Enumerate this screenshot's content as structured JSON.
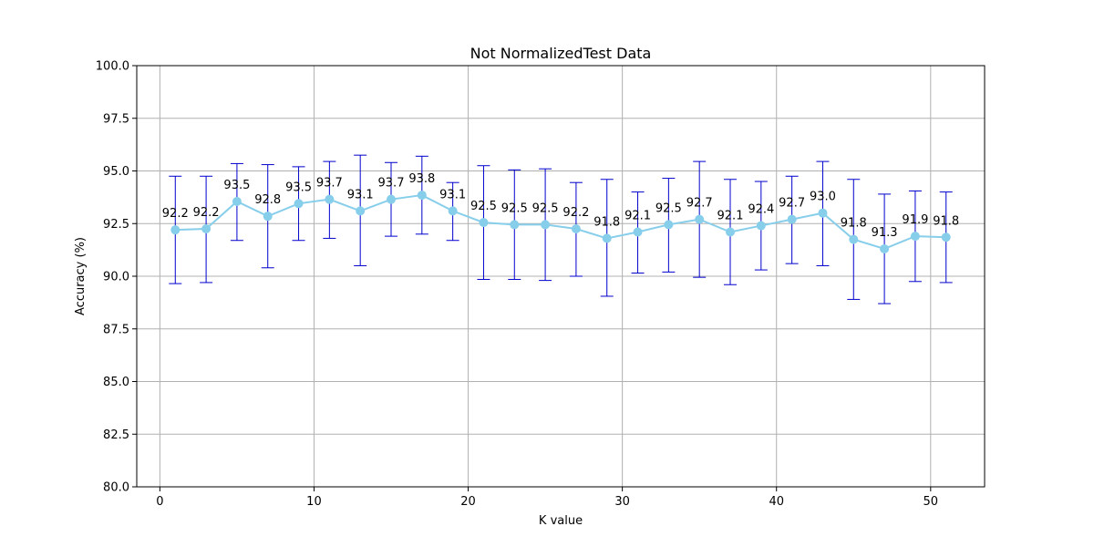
{
  "chart_data": {
    "type": "line",
    "title": "Not NormalizedTest Data",
    "xlabel": "K value",
    "ylabel": "Accuracy (%)",
    "xlim": [
      -1.5,
      53.5
    ],
    "ylim": [
      80,
      100
    ],
    "xticks": [
      0,
      10,
      20,
      30,
      40,
      50
    ],
    "xtick_labels": [
      "0",
      "10",
      "20",
      "30",
      "40",
      "50"
    ],
    "yticks": [
      80,
      82.5,
      85,
      87.5,
      90,
      92.5,
      95,
      97.5,
      100
    ],
    "ytick_labels": [
      "80.0",
      "82.5",
      "85.0",
      "87.5",
      "90.0",
      "92.5",
      "95.0",
      "97.5",
      "100.0"
    ],
    "grid": true,
    "line_color": "#87ceeb",
    "error_bar_color": "#0000cd",
    "x": [
      1,
      3,
      5,
      7,
      9,
      11,
      13,
      15,
      17,
      19,
      21,
      23,
      25,
      27,
      29,
      31,
      33,
      35,
      37,
      39,
      41,
      43,
      45,
      47,
      49,
      51
    ],
    "y": [
      92.2,
      92.25,
      93.55,
      92.85,
      93.45,
      93.65,
      93.1,
      93.65,
      93.85,
      93.1,
      92.55,
      92.45,
      92.45,
      92.25,
      91.8,
      92.1,
      92.45,
      92.7,
      92.1,
      92.4,
      92.7,
      93.0,
      91.75,
      91.3,
      91.9,
      91.85
    ],
    "err_low": [
      89.65,
      89.7,
      91.7,
      90.4,
      91.7,
      91.8,
      90.5,
      91.9,
      92.0,
      91.7,
      89.85,
      89.85,
      89.8,
      90.0,
      89.05,
      90.15,
      90.2,
      89.95,
      89.6,
      90.3,
      90.6,
      90.5,
      88.9,
      88.7,
      89.75,
      89.7
    ],
    "err_high": [
      94.75,
      94.75,
      95.35,
      95.3,
      95.2,
      95.45,
      95.75,
      95.4,
      95.7,
      94.45,
      95.25,
      95.05,
      95.1,
      94.45,
      94.6,
      94.0,
      94.65,
      95.45,
      94.6,
      94.5,
      94.75,
      95.45,
      94.6,
      93.9,
      94.05,
      94.0
    ],
    "labels": [
      "92.2",
      "92.2",
      "93.5",
      "92.8",
      "93.5",
      "93.7",
      "93.1",
      "93.7",
      "93.8",
      "93.1",
      "92.5",
      "92.5",
      "92.5",
      "92.2",
      "91.8",
      "92.1",
      "92.5",
      "92.7",
      "92.1",
      "92.4",
      "92.7",
      "93.0",
      "91.8",
      "91.3",
      "91.9",
      "91.8"
    ]
  }
}
